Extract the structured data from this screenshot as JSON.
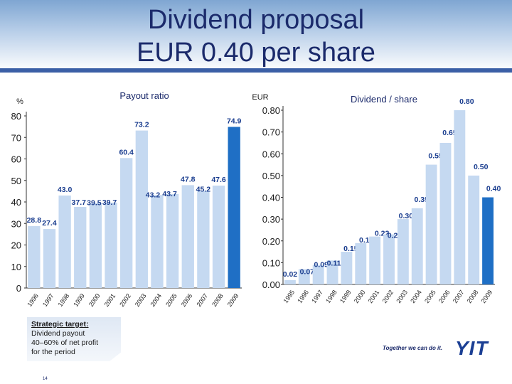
{
  "title_line1": "Dividend proposal",
  "title_line2": "EUR 0.40 per share",
  "target_box": {
    "heading": "Strategic target:",
    "line1": "Dividend payout",
    "line2": "40–60% of net profit",
    "line3": "for the period"
  },
  "slogan": "Together we can do it.",
  "logo": "YIT",
  "page_number": "14",
  "colors": {
    "bar": "#c5d9f1",
    "highlight": "#1f6fc5",
    "label": "#1a3d8f",
    "title": "#1b2a6b"
  },
  "chart_data": [
    {
      "type": "bar",
      "title": "Payout ratio",
      "ylabel": "%",
      "ylim": [
        0,
        80
      ],
      "yticks": [
        "0",
        "10",
        "20",
        "30",
        "40",
        "50",
        "60",
        "70",
        "80"
      ],
      "categories": [
        "1996",
        "1997",
        "1998",
        "1999",
        "2000",
        "2001",
        "2002",
        "2003",
        "2004",
        "2005",
        "2006",
        "2007",
        "2008",
        "2009"
      ],
      "values": [
        28.8,
        27.4,
        43.0,
        37.7,
        39.5,
        39.7,
        60.4,
        73.2,
        43.2,
        43.7,
        47.8,
        45.2,
        47.6,
        74.9
      ],
      "value_labels": [
        "28.8",
        "27.4",
        "43.0",
        "37.7",
        "39.5",
        "39.7",
        "60.4",
        "73.2",
        "43.2",
        "43.7",
        "47.8",
        "45.2",
        "47.6",
        "74.9"
      ],
      "highlight_index": 13,
      "grid": false
    },
    {
      "type": "bar",
      "title": "Dividend / share",
      "ylabel": "EUR",
      "ylim": [
        0,
        0.8
      ],
      "yticks": [
        "0.00",
        "0.10",
        "0.20",
        "0.30",
        "0.40",
        "0.50",
        "0.60",
        "0.70",
        "0.80"
      ],
      "categories": [
        "1995",
        "1996",
        "1997",
        "1998",
        "1999",
        "2000",
        "2001",
        "2002",
        "2003",
        "2004",
        "2005",
        "2006",
        "2007",
        "2008",
        "2009"
      ],
      "values": [
        0.02,
        0.07,
        0.09,
        0.11,
        0.15,
        0.19,
        0.22,
        0.23,
        0.3,
        0.35,
        0.55,
        0.65,
        0.8,
        0.5,
        0.4
      ],
      "value_labels": [
        "0.02",
        "0.07",
        "0.09",
        "0.11",
        "0.15",
        "0.19",
        "0.22",
        "0.23",
        "0.30",
        "0.35",
        "0.55",
        "0.65",
        "0.80",
        "0.50",
        "0.40"
      ],
      "highlight_index": 14,
      "grid": false
    }
  ]
}
